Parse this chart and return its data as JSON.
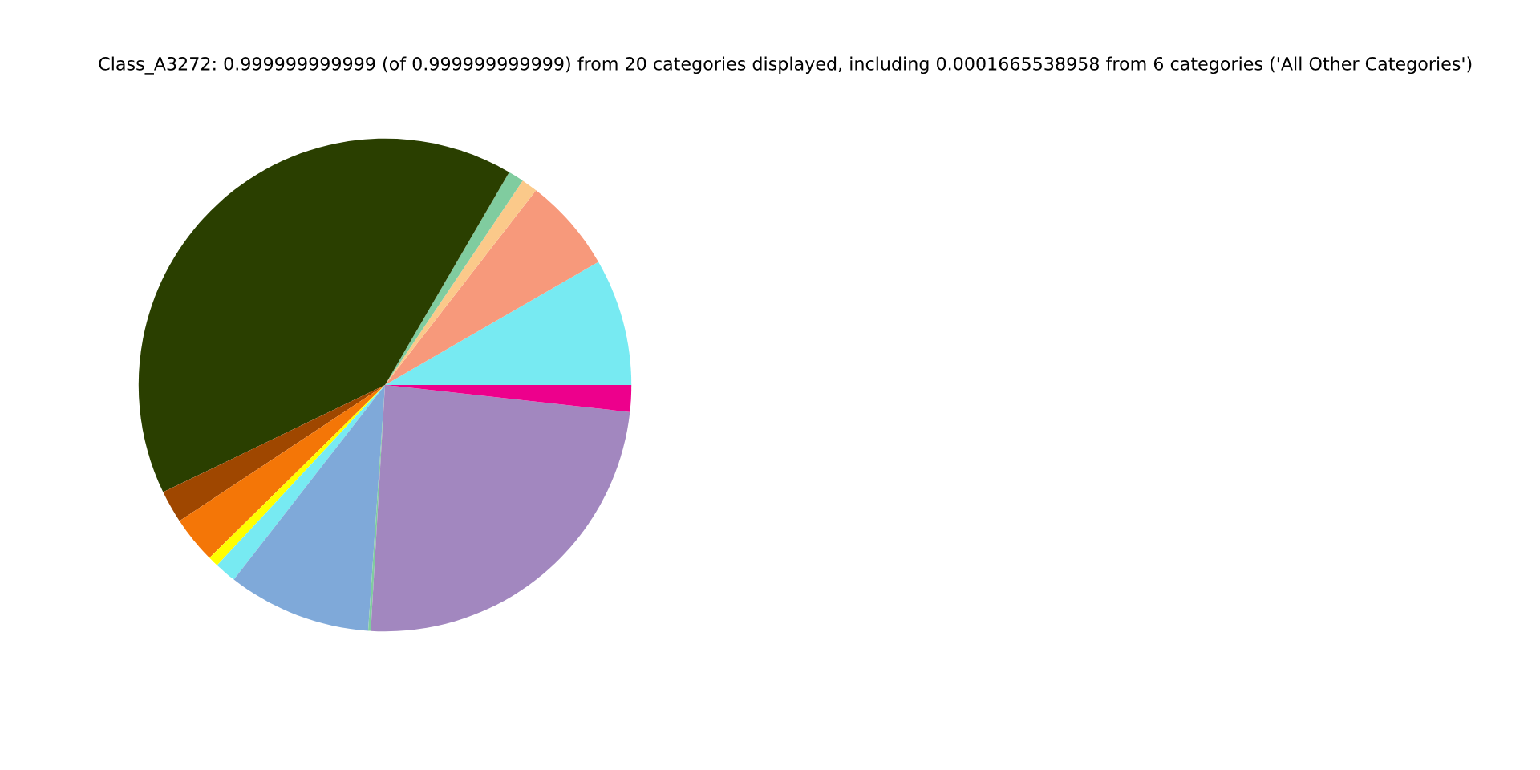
{
  "chart_data": {
    "type": "pie",
    "title": "Class_A3272: 0.999999999999 (of 0.999999999999) from 20 categories displayed, including 0.0001665538958 from 6 categories ('All Other Categories')",
    "categories": [
      null,
      null,
      null,
      null,
      null,
      null,
      null,
      null,
      null,
      null,
      null,
      null,
      null
    ],
    "values": [
      8.33,
      6.17,
      1.06,
      1.03,
      40.57,
      2.14,
      3.08,
      0.69,
      1.42,
      9.42,
      0.17,
      24.17,
      1.75
    ],
    "colors": [
      "#77eaf2",
      "#f7997b",
      "#fbc98a",
      "#80cc9f",
      "#2a3f00",
      "#9f4700",
      "#f47607",
      "#ffff00",
      "#77eaf2",
      "#7fa9d9",
      "#80cc9f",
      "#a287bf",
      "#ed008c"
    ],
    "legend": false
  }
}
